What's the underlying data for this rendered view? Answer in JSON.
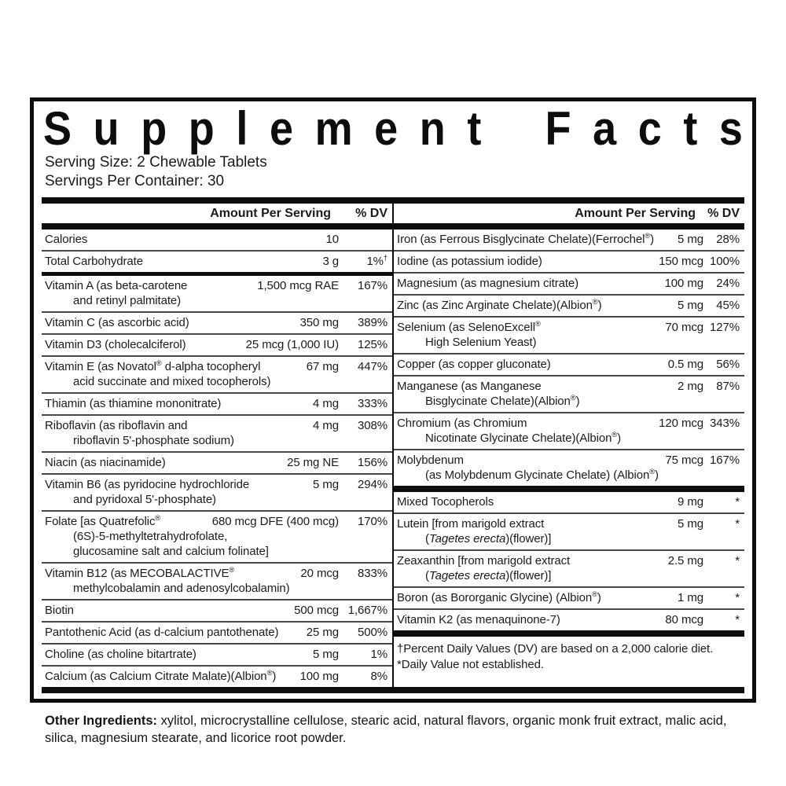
{
  "title": "Supplement Facts",
  "serving": {
    "size": "Serving Size: 2 Chewable Tablets",
    "per_container": "Servings Per Container: 30"
  },
  "columns": {
    "header_amount": "Amount Per Serving",
    "header_dv": "% DV"
  },
  "left_rows": [
    {
      "lines": [
        [
          {
            "t": "Calories"
          }
        ]
      ],
      "amount": "10",
      "dv": "",
      "sep": "thin"
    },
    {
      "lines": [
        [
          {
            "t": "Total Carbohydrate"
          }
        ]
      ],
      "amount": "3 g",
      "dv": "1%",
      "dv_sup": "†",
      "sep": "medium"
    },
    {
      "lines": [
        [
          {
            "t": "Vitamin A (as beta-carotene"
          }
        ],
        [
          {
            "t": "and retinyl palmitate)"
          }
        ]
      ],
      "amount": "1,500 mcg RAE",
      "dv": "167%",
      "sep": "thin"
    },
    {
      "lines": [
        [
          {
            "t": "Vitamin C (as ascorbic acid)"
          }
        ]
      ],
      "amount": "350 mg",
      "dv": "389%",
      "sep": "thin"
    },
    {
      "lines": [
        [
          {
            "t": "Vitamin D3 (cholecalciferol)"
          }
        ]
      ],
      "amount": "25 mcg (1,000 IU)",
      "dv": "125%",
      "sep": "thin"
    },
    {
      "lines": [
        [
          {
            "t": "Vitamin E (as Novatol"
          },
          {
            "t": "®",
            "s": "sup"
          },
          {
            "t": " d-alpha tocopheryl"
          }
        ],
        [
          {
            "t": "acid succinate and mixed tocopherols)"
          }
        ]
      ],
      "amount": "67 mg",
      "dv": "447%",
      "sep": "thin"
    },
    {
      "lines": [
        [
          {
            "t": "Thiamin (as thiamine mononitrate)"
          }
        ]
      ],
      "amount": "4 mg",
      "dv": "333%",
      "sep": "thin"
    },
    {
      "lines": [
        [
          {
            "t": "Riboflavin (as riboflavin and"
          }
        ],
        [
          {
            "t": "riboflavin 5'-phosphate sodium)"
          }
        ]
      ],
      "amount": "4 mg",
      "dv": "308%",
      "sep": "thin"
    },
    {
      "lines": [
        [
          {
            "t": "Niacin (as niacinamide)"
          }
        ]
      ],
      "amount": "25 mg NE",
      "dv": "156%",
      "sep": "thin"
    },
    {
      "lines": [
        [
          {
            "t": "Vitamin B6 (as pyridocine hydrochloride"
          }
        ],
        [
          {
            "t": "and pyridoxal 5'-phosphate)"
          }
        ]
      ],
      "amount": "5 mg",
      "dv": "294%",
      "sep": "thin"
    },
    {
      "lines": [
        [
          {
            "t": "Folate [as Quatrefolic"
          },
          {
            "t": "®",
            "s": "sup"
          }
        ],
        [
          {
            "t": "(6S)-5-methyltetrahydrofolate,"
          }
        ],
        [
          {
            "t": "glucosamine salt and calcium folinate]"
          }
        ]
      ],
      "amount": "680 mcg DFE (400 mcg)",
      "dv": "170%",
      "sep": "thin"
    },
    {
      "lines": [
        [
          {
            "t": "Vitamin B12 (as MECOBALACTIVE"
          },
          {
            "t": "®",
            "s": "sup"
          }
        ],
        [
          {
            "t": "methylcobalamin and adenosylcobalamin)"
          }
        ]
      ],
      "amount": "20 mcg",
      "dv": "833%",
      "sep": "thin"
    },
    {
      "lines": [
        [
          {
            "t": "Biotin"
          }
        ]
      ],
      "amount": "500 mcg",
      "dv": "1,667%",
      "sep": "thin"
    },
    {
      "lines": [
        [
          {
            "t": "Pantothenic Acid (as d-calcium pantothenate)"
          }
        ]
      ],
      "amount": "25 mg",
      "dv": "500%",
      "sep": "thin"
    },
    {
      "lines": [
        [
          {
            "t": "Choline (as choline bitartrate)"
          }
        ]
      ],
      "amount": "5 mg",
      "dv": "1%",
      "sep": "thin"
    },
    {
      "lines": [
        [
          {
            "t": "Calcium (as Calcium Citrate Malate)(Albion"
          },
          {
            "t": "®",
            "s": "sup"
          },
          {
            "t": ")"
          }
        ]
      ],
      "amount": "100 mg",
      "dv": "8%",
      "sep": "none"
    }
  ],
  "right_rows": [
    {
      "lines": [
        [
          {
            "t": "Iron (as Ferrous Bisglycinate Chelate)(Ferrochel"
          },
          {
            "t": "®",
            "s": "sup"
          },
          {
            "t": ")"
          }
        ]
      ],
      "amount": "5 mg",
      "dv": "28%",
      "sep": "thin"
    },
    {
      "lines": [
        [
          {
            "t": "Iodine (as potassium iodide)"
          }
        ]
      ],
      "amount": "150 mcg",
      "dv": "100%",
      "sep": "thin"
    },
    {
      "lines": [
        [
          {
            "t": "Magnesium (as magnesium citrate)"
          }
        ]
      ],
      "amount": "100 mg",
      "dv": "24%",
      "sep": "thin"
    },
    {
      "lines": [
        [
          {
            "t": "Zinc (as Zinc Arginate Chelate)(Albion"
          },
          {
            "t": "®",
            "s": "sup"
          },
          {
            "t": ")"
          }
        ]
      ],
      "amount": "5 mg",
      "dv": "45%",
      "sep": "thin"
    },
    {
      "lines": [
        [
          {
            "t": "Selenium (as SelenoExcell"
          },
          {
            "t": "®",
            "s": "sup"
          }
        ],
        [
          {
            "t": "High Selenium Yeast)"
          }
        ]
      ],
      "amount": "70 mcg",
      "dv": "127%",
      "sep": "thin"
    },
    {
      "lines": [
        [
          {
            "t": "Copper (as copper gluconate)"
          }
        ]
      ],
      "amount": "0.5 mg",
      "dv": "56%",
      "sep": "thin"
    },
    {
      "lines": [
        [
          {
            "t": "Manganese (as Manganese"
          }
        ],
        [
          {
            "t": "Bisglycinate Chelate)(Albion"
          },
          {
            "t": "®",
            "s": "sup"
          },
          {
            "t": ")"
          }
        ]
      ],
      "amount": "2 mg",
      "dv": "87%",
      "sep": "thin"
    },
    {
      "lines": [
        [
          {
            "t": "Chromium (as Chromium"
          }
        ],
        [
          {
            "t": "Nicotinate Glycinate Chelate)(Albion"
          },
          {
            "t": "®",
            "s": "sup"
          },
          {
            "t": ")"
          }
        ]
      ],
      "amount": "120 mcg",
      "dv": "343%",
      "sep": "thin"
    },
    {
      "lines": [
        [
          {
            "t": "Molybdenum"
          }
        ],
        [
          {
            "t": "(as Molybdenum Glycinate Chelate) (Albion"
          },
          {
            "t": "®",
            "s": "sup"
          },
          {
            "t": ")"
          }
        ]
      ],
      "amount": "75 mcg",
      "dv": "167%",
      "sep": "thick"
    },
    {
      "lines": [
        [
          {
            "t": "Mixed Tocopherols"
          }
        ]
      ],
      "amount": "9 mg",
      "dv": "*",
      "sep": "thin"
    },
    {
      "lines": [
        [
          {
            "t": "Lutein [from marigold extract"
          }
        ],
        [
          {
            "t": "("
          },
          {
            "t": "Tagetes erecta",
            "s": "i"
          },
          {
            "t": ")(flower)]"
          }
        ]
      ],
      "amount": "5 mg",
      "dv": "*",
      "sep": "thin"
    },
    {
      "lines": [
        [
          {
            "t": "Zeaxanthin [from marigold extract"
          }
        ],
        [
          {
            "t": "("
          },
          {
            "t": "Tagetes erecta",
            "s": "i"
          },
          {
            "t": ")(flower)]"
          }
        ]
      ],
      "amount": "2.5 mg",
      "dv": "*",
      "sep": "thin"
    },
    {
      "lines": [
        [
          {
            "t": "Boron (as Bororganic Glycine) (Albion"
          },
          {
            "t": "®",
            "s": "sup"
          },
          {
            "t": ")"
          }
        ]
      ],
      "amount": "1 mg",
      "dv": "*",
      "sep": "thin"
    },
    {
      "lines": [
        [
          {
            "t": "Vitamin K2 (as menaquinone-7)"
          }
        ]
      ],
      "amount": "80 mcg",
      "dv": "*",
      "sep": "thick"
    }
  ],
  "footnotes": [
    "†Percent Daily Values (DV) are based on a 2,000 calorie diet.",
    "*Daily Value not established."
  ],
  "other_ingredients": {
    "label": "Other Ingredients:",
    "text": " xylitol, microcrystalline cellulose, stearic acid, natural flavors, organic monk fruit extract, malic acid, silica, magnesium stearate, and licorice root powder."
  },
  "colors": {
    "ink": "#1b1b1b",
    "bar": "#0d0d0d",
    "bg": "#ffffff"
  }
}
